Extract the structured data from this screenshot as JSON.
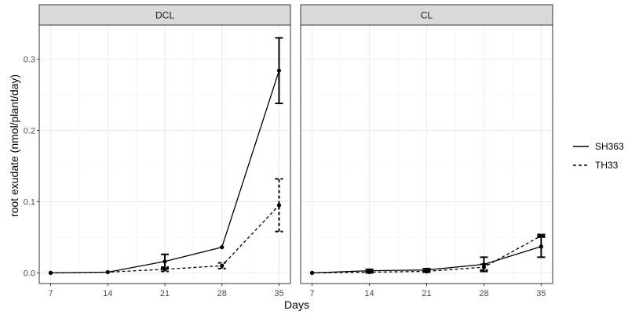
{
  "chart_data": {
    "type": "line",
    "xlabel": "Days",
    "ylabel": "root exudate (nmol/plant/day)",
    "x": [
      7,
      14,
      21,
      28,
      35
    ],
    "xlim": [
      5.6,
      36.4
    ],
    "ylim": [
      -0.015,
      0.348
    ],
    "xticks": [
      7,
      14,
      21,
      28,
      35
    ],
    "yticks": [
      0.0,
      0.1,
      0.2,
      0.3
    ],
    "ytick_labels": [
      "0.0",
      "0.1",
      "0.2",
      "0.3"
    ],
    "grid": true,
    "legend": "right",
    "legend_entries": [
      {
        "name": "SH363",
        "style": "solid"
      },
      {
        "name": "TH33",
        "style": "dashed"
      }
    ],
    "panels": [
      {
        "label": "DCL",
        "series": [
          {
            "name": "SH363",
            "style": "solid",
            "values": [
              0.0,
              0.001,
              0.016,
              0.036,
              0.284
            ],
            "errors": [
              0.0,
              0.0,
              0.01,
              0.0,
              0.046
            ]
          },
          {
            "name": "TH33",
            "style": "dashed",
            "values": [
              0.0,
              0.001,
              0.005,
              0.01,
              0.095
            ],
            "errors": [
              0.0,
              0.0,
              0.003,
              0.004,
              0.037
            ]
          }
        ]
      },
      {
        "label": "CL",
        "series": [
          {
            "name": "SH363",
            "style": "solid",
            "values": [
              0.0,
              0.003,
              0.004,
              0.012,
              0.037
            ],
            "errors": [
              0.0,
              0.002,
              0.002,
              0.01,
              0.015
            ]
          },
          {
            "name": "TH33",
            "style": "dashed",
            "values": [
              0.0,
              0.001,
              0.002,
              0.008,
              0.052
            ],
            "errors": [
              0.0,
              0.001,
              0.001,
              0.004,
              0.002
            ]
          }
        ]
      }
    ]
  }
}
